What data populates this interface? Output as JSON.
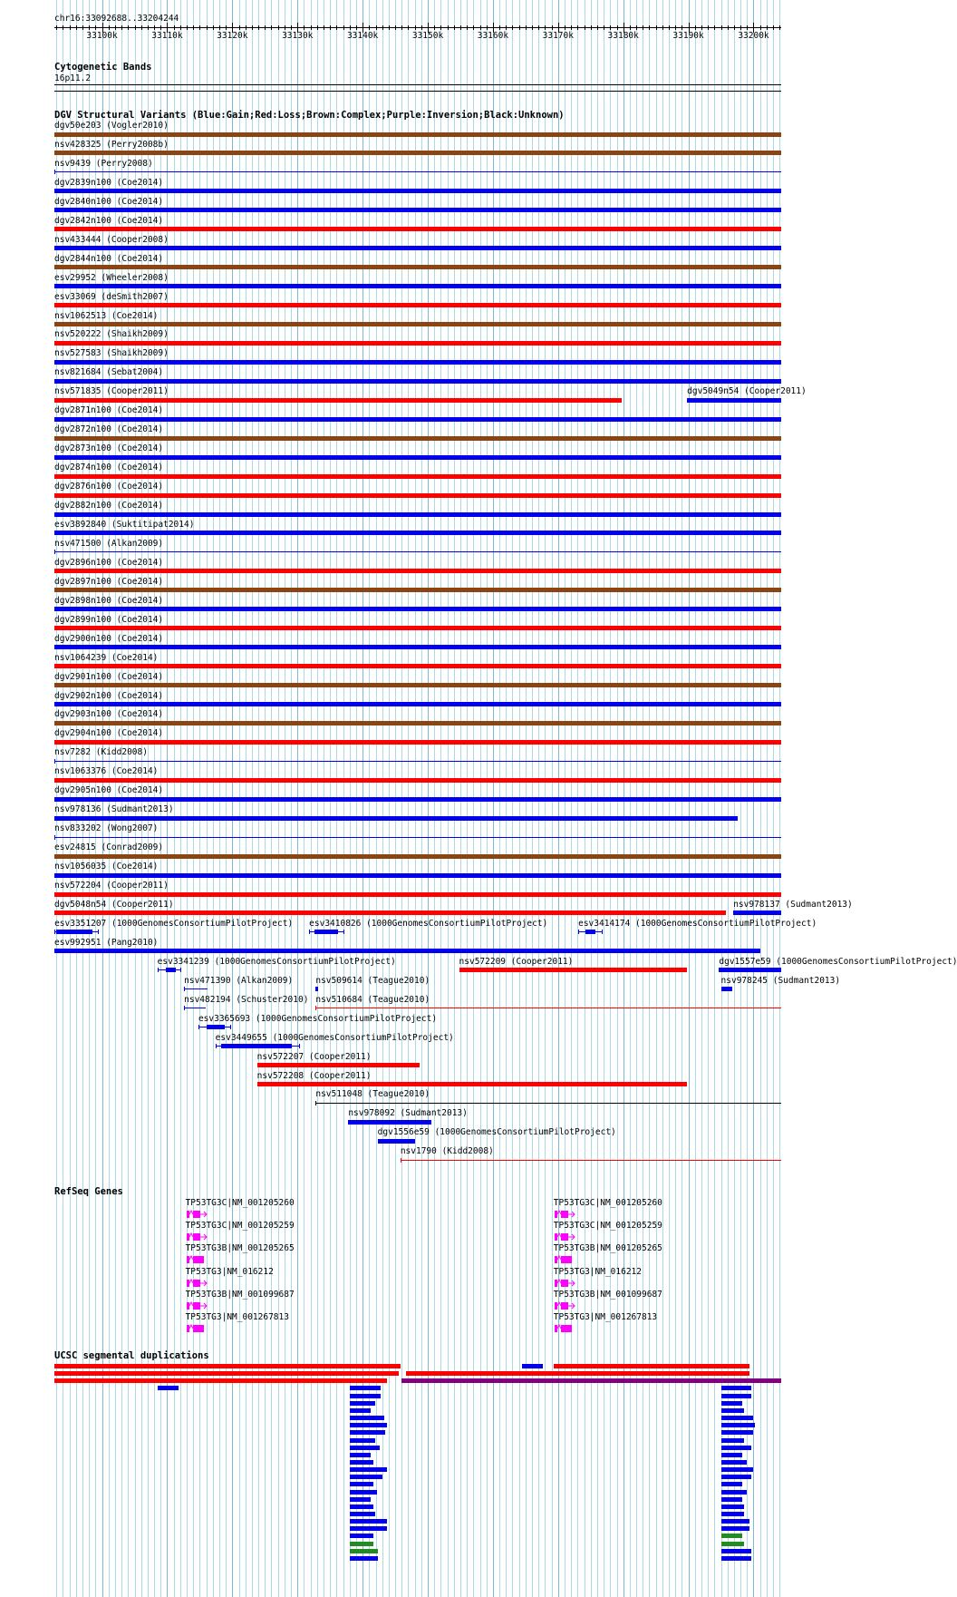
{
  "ruler": {
    "region": "chr16:33092688..33204244",
    "start": 33092688,
    "end": 33204244,
    "ticks": [
      {
        "pos": 33100000,
        "label": "33100k"
      },
      {
        "pos": 33110000,
        "label": "33110k"
      },
      {
        "pos": 33120000,
        "label": "33120k"
      },
      {
        "pos": 33130000,
        "label": "33130k"
      },
      {
        "pos": 33140000,
        "label": "33140k"
      },
      {
        "pos": 33150000,
        "label": "33150k"
      },
      {
        "pos": 33160000,
        "label": "33160k"
      },
      {
        "pos": 33170000,
        "label": "33170k"
      },
      {
        "pos": 33180000,
        "label": "33180k"
      },
      {
        "pos": 33190000,
        "label": "33190k"
      },
      {
        "pos": 33200000,
        "label": "33200k"
      }
    ]
  },
  "colors": {
    "gain": "#0000ee",
    "loss": "#ff0000",
    "complex": "#8b4513",
    "inversion": "#800080",
    "gene": "#ff00ff",
    "segdup_other": "#228b22",
    "grid": "#add8e6"
  },
  "tracks": {
    "cyto": {
      "title": "Cytogenetic Bands",
      "band": "16p11.2"
    },
    "dgv": {
      "title": "DGV Structural Variants (Blue:Gain;Red:Loss;Brown:Complex;Purple:Inversion;Black:Unknown)"
    },
    "refseq": {
      "title": "RefSeq Genes"
    },
    "segdup": {
      "title": "UCSC segmental duplications"
    }
  },
  "sv_rows": [
    [
      {
        "label": "dgv50e203 (Vogler2010)",
        "start": 33092688,
        "end": 33204244,
        "type": "complex"
      }
    ],
    [
      {
        "label": "nsv428325 (Perry2008b)",
        "start": 33092688,
        "end": 33204244,
        "type": "complex"
      }
    ],
    [
      {
        "label": "nsv9439 (Perry2008)",
        "start": 33092688,
        "end": 33204244,
        "type": "gain",
        "thin": true
      }
    ],
    [
      {
        "label": "dgv2839n100 (Coe2014)",
        "start": 33092688,
        "end": 33204244,
        "type": "gain"
      }
    ],
    [
      {
        "label": "dgv2840n100 (Coe2014)",
        "start": 33092688,
        "end": 33204244,
        "type": "gain"
      }
    ],
    [
      {
        "label": "dgv2842n100 (Coe2014)",
        "start": 33092688,
        "end": 33204244,
        "type": "loss"
      }
    ],
    [
      {
        "label": "nsv433444 (Cooper2008)",
        "start": 33092688,
        "end": 33204244,
        "type": "gain"
      }
    ],
    [
      {
        "label": "dgv2844n100 (Coe2014)",
        "start": 33092688,
        "end": 33204244,
        "type": "complex"
      }
    ],
    [
      {
        "label": "esv29952 (Wheeler2008)",
        "start": 33092688,
        "end": 33204244,
        "type": "gain"
      }
    ],
    [
      {
        "label": "esv33069 (deSmith2007)",
        "start": 33092688,
        "end": 33204244,
        "type": "loss"
      }
    ],
    [
      {
        "label": "nsv1062513 (Coe2014)",
        "start": 33092688,
        "end": 33204244,
        "type": "complex"
      }
    ],
    [
      {
        "label": "nsv520222 (Shaikh2009)",
        "start": 33092688,
        "end": 33204244,
        "type": "loss"
      }
    ],
    [
      {
        "label": "nsv527583 (Shaikh2009)",
        "start": 33092688,
        "end": 33204244,
        "type": "gain"
      }
    ],
    [
      {
        "label": "nsv821684 (Sebat2004)",
        "start": 33092688,
        "end": 33204244,
        "type": "gain"
      }
    ],
    [
      {
        "label": "nsv571835 (Cooper2011)",
        "start": 33092688,
        "end": 33179800,
        "type": "loss"
      },
      {
        "label": "dgv5049n54 (Cooper2011)",
        "start": 33189800,
        "end": 33204244,
        "type": "gain"
      }
    ],
    [
      {
        "label": "dgv2871n100 (Coe2014)",
        "start": 33092688,
        "end": 33204244,
        "type": "gain"
      }
    ],
    [
      {
        "label": "dgv2872n100 (Coe2014)",
        "start": 33092688,
        "end": 33204244,
        "type": "complex"
      }
    ],
    [
      {
        "label": "dgv2873n100 (Coe2014)",
        "start": 33092688,
        "end": 33204244,
        "type": "gain"
      }
    ],
    [
      {
        "label": "dgv2874n100 (Coe2014)",
        "start": 33092688,
        "end": 33204244,
        "type": "loss"
      }
    ],
    [
      {
        "label": "dgv2876n100 (Coe2014)",
        "start": 33092688,
        "end": 33204244,
        "type": "loss"
      }
    ],
    [
      {
        "label": "dgv2882n100 (Coe2014)",
        "start": 33092688,
        "end": 33204244,
        "type": "gain"
      }
    ],
    [
      {
        "label": "esv3892840 (Suktitipat2014)",
        "start": 33092688,
        "end": 33204244,
        "type": "gain"
      }
    ],
    [
      {
        "label": "nsv471500 (Alkan2009)",
        "start": 33092688,
        "end": 33204244,
        "type": "gain",
        "thin": true
      }
    ],
    [
      {
        "label": "dgv2896n100 (Coe2014)",
        "start": 33092688,
        "end": 33204244,
        "type": "loss"
      }
    ],
    [
      {
        "label": "dgv2897n100 (Coe2014)",
        "start": 33092688,
        "end": 33204244,
        "type": "complex"
      }
    ],
    [
      {
        "label": "dgv2898n100 (Coe2014)",
        "start": 33092688,
        "end": 33204244,
        "type": "gain"
      }
    ],
    [
      {
        "label": "dgv2899n100 (Coe2014)",
        "start": 33092688,
        "end": 33204244,
        "type": "loss"
      }
    ],
    [
      {
        "label": "dgv2900n100 (Coe2014)",
        "start": 33092688,
        "end": 33204244,
        "type": "gain"
      }
    ],
    [
      {
        "label": "nsv1064239 (Coe2014)",
        "start": 33092688,
        "end": 33204244,
        "type": "loss"
      }
    ],
    [
      {
        "label": "dgv2901n100 (Coe2014)",
        "start": 33092688,
        "end": 33204244,
        "type": "complex"
      }
    ],
    [
      {
        "label": "dgv2902n100 (Coe2014)",
        "start": 33092688,
        "end": 33204244,
        "type": "gain"
      }
    ],
    [
      {
        "label": "dgv2903n100 (Coe2014)",
        "start": 33092688,
        "end": 33204244,
        "type": "complex"
      }
    ],
    [
      {
        "label": "dgv2904n100 (Coe2014)",
        "start": 33092688,
        "end": 33204244,
        "type": "loss"
      }
    ],
    [
      {
        "label": "nsv7282 (Kidd2008)",
        "start": 33092688,
        "end": 33204244,
        "type": "gain",
        "thin": true
      }
    ],
    [
      {
        "label": "nsv1063376 (Coe2014)",
        "start": 33092688,
        "end": 33204244,
        "type": "loss"
      }
    ],
    [
      {
        "label": "dgv2905n100 (Coe2014)",
        "start": 33092688,
        "end": 33204244,
        "type": "gain"
      }
    ],
    [
      {
        "label": "nsv978136 (Sudmant2013)",
        "start": 33092688,
        "end": 33197600,
        "type": "gain"
      }
    ],
    [
      {
        "label": "nsv833202 (Wong2007)",
        "start": 33092688,
        "end": 33204244,
        "type": "gain",
        "thin": true
      }
    ],
    [
      {
        "label": "esv24815 (Conrad2009)",
        "start": 33092688,
        "end": 33204244,
        "type": "complex"
      }
    ],
    [
      {
        "label": "nsv1056035 (Coe2014)",
        "start": 33092688,
        "end": 33204244,
        "type": "gain"
      }
    ],
    [
      {
        "label": "nsv572204 (Cooper2011)",
        "start": 33092688,
        "end": 33204244,
        "type": "loss"
      }
    ],
    [
      {
        "label": "dgv5048n54 (Cooper2011)",
        "start": 33092688,
        "end": 33195800,
        "type": "loss"
      },
      {
        "label": "nsv978137 (Sudmant2013)",
        "start": 33196900,
        "end": 33204244,
        "type": "gain"
      }
    ],
    [
      {
        "label": "esv3351207 (1000GenomesConsortiumPilotProject)",
        "start": 33092700,
        "end": 33099500,
        "type": "gain",
        "exon": [
          33092900,
          33098500
        ]
      },
      {
        "label": "esv3410826 (1000GenomesConsortiumPilotProject)",
        "start": 33131800,
        "end": 33137200,
        "type": "gain",
        "exon": [
          33132600,
          33136200
        ]
      },
      {
        "label": "esv3414174 (1000GenomesConsortiumPilotProject)",
        "start": 33173100,
        "end": 33176800,
        "type": "gain",
        "exon": [
          33174200,
          33175700
        ]
      }
    ],
    [
      {
        "label": "esv992951 (Pang2010)",
        "start": 33092688,
        "end": 33201100,
        "type": "gain"
      }
    ],
    [
      {
        "label": "esv3341239 (1000GenomesConsortiumPilotProject)",
        "start": 33108500,
        "end": 33112200,
        "type": "gain",
        "exon": [
          33109800,
          33111300
        ]
      },
      {
        "label": "nsv572209 (Cooper2011)",
        "start": 33154800,
        "end": 33189800,
        "type": "loss"
      },
      {
        "label": "dgv1557e59 (1000GenomesConsortiumPilotProject)",
        "start": 33194700,
        "end": 33204244,
        "type": "gain"
      }
    ],
    [
      {
        "label": "nsv471390 (Alkan2009)",
        "start": 33112600,
        "end": 33116200,
        "type": "gain",
        "thin": true
      },
      {
        "label": "nsv509614 (Teague2010)",
        "start": 33132800,
        "end": 33133100,
        "type": "gain"
      },
      {
        "label": "nsv978245 (Sudmant2013)",
        "start": 33195000,
        "end": 33196800,
        "type": "gain"
      }
    ],
    [
      {
        "label": "nsv482194 (Schuster2010)",
        "start": 33112600,
        "end": 33115900,
        "type": "gain",
        "thin": true
      },
      {
        "label": "nsv510684 (Teague2010)",
        "start": 33132800,
        "end": 33204244,
        "type": "loss",
        "thin": true
      }
    ],
    [
      {
        "label": "esv3365693 (1000GenomesConsortiumPilotProject)",
        "start": 33114800,
        "end": 33119800,
        "type": "gain",
        "exon": [
          33116000,
          33118800
        ]
      }
    ],
    [
      {
        "label": "esv3449655 (1000GenomesConsortiumPilotProject)",
        "start": 33117400,
        "end": 33130400,
        "type": "gain",
        "exon": [
          33118300,
          33129200
        ]
      }
    ],
    [
      {
        "label": "nsv572207 (Cooper2011)",
        "start": 33123800,
        "end": 33148800,
        "type": "loss"
      }
    ],
    [
      {
        "label": "nsv572208 (Cooper2011)",
        "start": 33123800,
        "end": 33189800,
        "type": "loss"
      }
    ],
    [
      {
        "label": "nsv511048 (Teague2010)",
        "start": 33132800,
        "end": 33204244,
        "type": "unknown",
        "thin": true
      }
    ],
    [
      {
        "label": "nsv978092 (Sudmant2013)",
        "start": 33137800,
        "end": 33150600,
        "type": "gain"
      }
    ],
    [
      {
        "label": "dgv1556e59 (1000GenomesConsortiumPilotProject)",
        "start": 33142300,
        "end": 33148000,
        "type": "gain"
      }
    ],
    [
      {
        "label": "nsv1790 (Kidd2008)",
        "start": 33145800,
        "end": 33204244,
        "type": "loss",
        "thin": true
      }
    ]
  ],
  "genes": [
    [
      {
        "label": "TP53TG3C|NM_001205260",
        "start": 33112800,
        "exons": 2
      },
      {
        "label": "TP53TG3C|NM_001205260",
        "start": 33169300,
        "exons": 2
      }
    ],
    [
      {
        "label": "TP53TG3C|NM_001205259",
        "start": 33112800,
        "exons": 2
      },
      {
        "label": "TP53TG3C|NM_001205259",
        "start": 33169300,
        "exons": 2
      }
    ],
    [
      {
        "label": "TP53TG3B|NM_001205265",
        "start": 33112800,
        "exons": 1
      },
      {
        "label": "TP53TG3B|NM_001205265",
        "start": 33169300,
        "exons": 1
      }
    ],
    [
      {
        "label": "TP53TG3|NM_016212",
        "start": 33112800,
        "exons": 2
      },
      {
        "label": "TP53TG3|NM_016212",
        "start": 33169300,
        "exons": 2
      }
    ],
    [
      {
        "label": "TP53TG3B|NM_001099687",
        "start": 33112800,
        "exons": 2
      },
      {
        "label": "TP53TG3B|NM_001099687",
        "start": 33169300,
        "exons": 2
      }
    ],
    [
      {
        "label": "TP53TG3|NM_001267813",
        "start": 33112800,
        "exons": 1
      },
      {
        "label": "TP53TG3|NM_001267813",
        "start": 33169300,
        "exons": 1
      }
    ]
  ],
  "segdups": [
    {
      "start": 33092688,
      "end": 33145800,
      "row": 0,
      "color": "loss"
    },
    {
      "start": 33164400,
      "end": 33167700,
      "row": 0,
      "color": "gain"
    },
    {
      "start": 33169300,
      "end": 33199400,
      "row": 0,
      "color": "loss"
    },
    {
      "start": 33092688,
      "end": 33145600,
      "row": 1,
      "color": "loss"
    },
    {
      "start": 33146600,
      "end": 33199400,
      "row": 1,
      "color": "loss"
    },
    {
      "start": 33092688,
      "end": 33143700,
      "row": 2,
      "color": "loss"
    },
    {
      "start": 33145900,
      "end": 33204244,
      "row": 2,
      "color": "inversion"
    },
    {
      "start": 33108500,
      "end": 33111800,
      "row": 3,
      "color": "gain"
    },
    {
      "start": 33138000,
      "end": 33142800,
      "row": 3,
      "color": "gain"
    },
    {
      "start": 33195000,
      "end": 33199700,
      "row": 3,
      "color": "gain"
    }
  ],
  "segdup_stacks": [
    {
      "base": 33138000,
      "ends": [
        33142800,
        33141900,
        33141300,
        33143300,
        33143700,
        33143400,
        33141900,
        33142600,
        33141300,
        33141700,
        33143700,
        33143000,
        33141700,
        33142200,
        33141300,
        33141700,
        33141900,
        33143700,
        33143700,
        33141700,
        33141700,
        33142400,
        33142400
      ],
      "others": [
        20,
        21
      ]
    },
    {
      "base": 33195000,
      "ends": [
        33199700,
        33198200,
        33198600,
        33200000,
        33200200,
        33199900,
        33198600,
        33199600,
        33198200,
        33198900,
        33200000,
        33199600,
        33198200,
        33198900,
        33198200,
        33198600,
        33198600,
        33199400,
        33199400,
        33198200,
        33198500,
        33199600,
        33199600
      ],
      "others": [
        19,
        20
      ]
    }
  ]
}
